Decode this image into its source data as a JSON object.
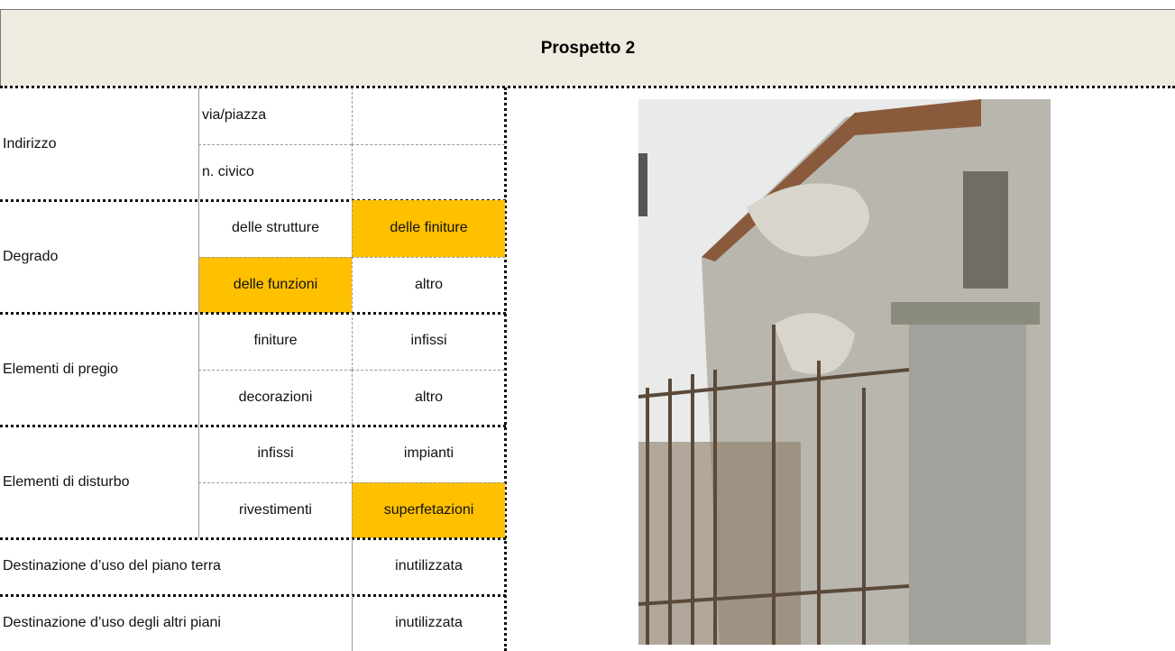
{
  "header": {
    "title": "Prospetto 2"
  },
  "table": {
    "highlight_color": "#ffc000",
    "groups": [
      {
        "label": "Indirizzo",
        "rows": [
          [
            {
              "text": "via/piazza"
            }
          ],
          [
            {
              "text": "n. civico"
            }
          ]
        ]
      },
      {
        "label": "Degrado",
        "rows": [
          [
            {
              "text": "delle strutture"
            },
            {
              "text": "delle finiture",
              "highlighted": true
            }
          ],
          [
            {
              "text": "delle funzioni",
              "highlighted": true
            },
            {
              "text": "altro"
            }
          ]
        ]
      },
      {
        "label": "Elementi di pregio",
        "rows": [
          [
            {
              "text": "finiture"
            },
            {
              "text": "infissi"
            }
          ],
          [
            {
              "text": "decorazioni"
            },
            {
              "text": "altro"
            }
          ]
        ]
      },
      {
        "label": "Elementi di disturbo",
        "rows": [
          [
            {
              "text": "infissi"
            },
            {
              "text": "impianti"
            }
          ],
          [
            {
              "text": "rivestimenti"
            },
            {
              "text": "superfetazioni",
              "highlighted": true
            }
          ]
        ]
      }
    ],
    "uses": [
      {
        "label": "Destinazione d’uso del piano terra",
        "value": "inutilizzata"
      },
      {
        "label": "Destinazione d’uso degli altri piani",
        "value": "inutilizzata"
      }
    ]
  }
}
